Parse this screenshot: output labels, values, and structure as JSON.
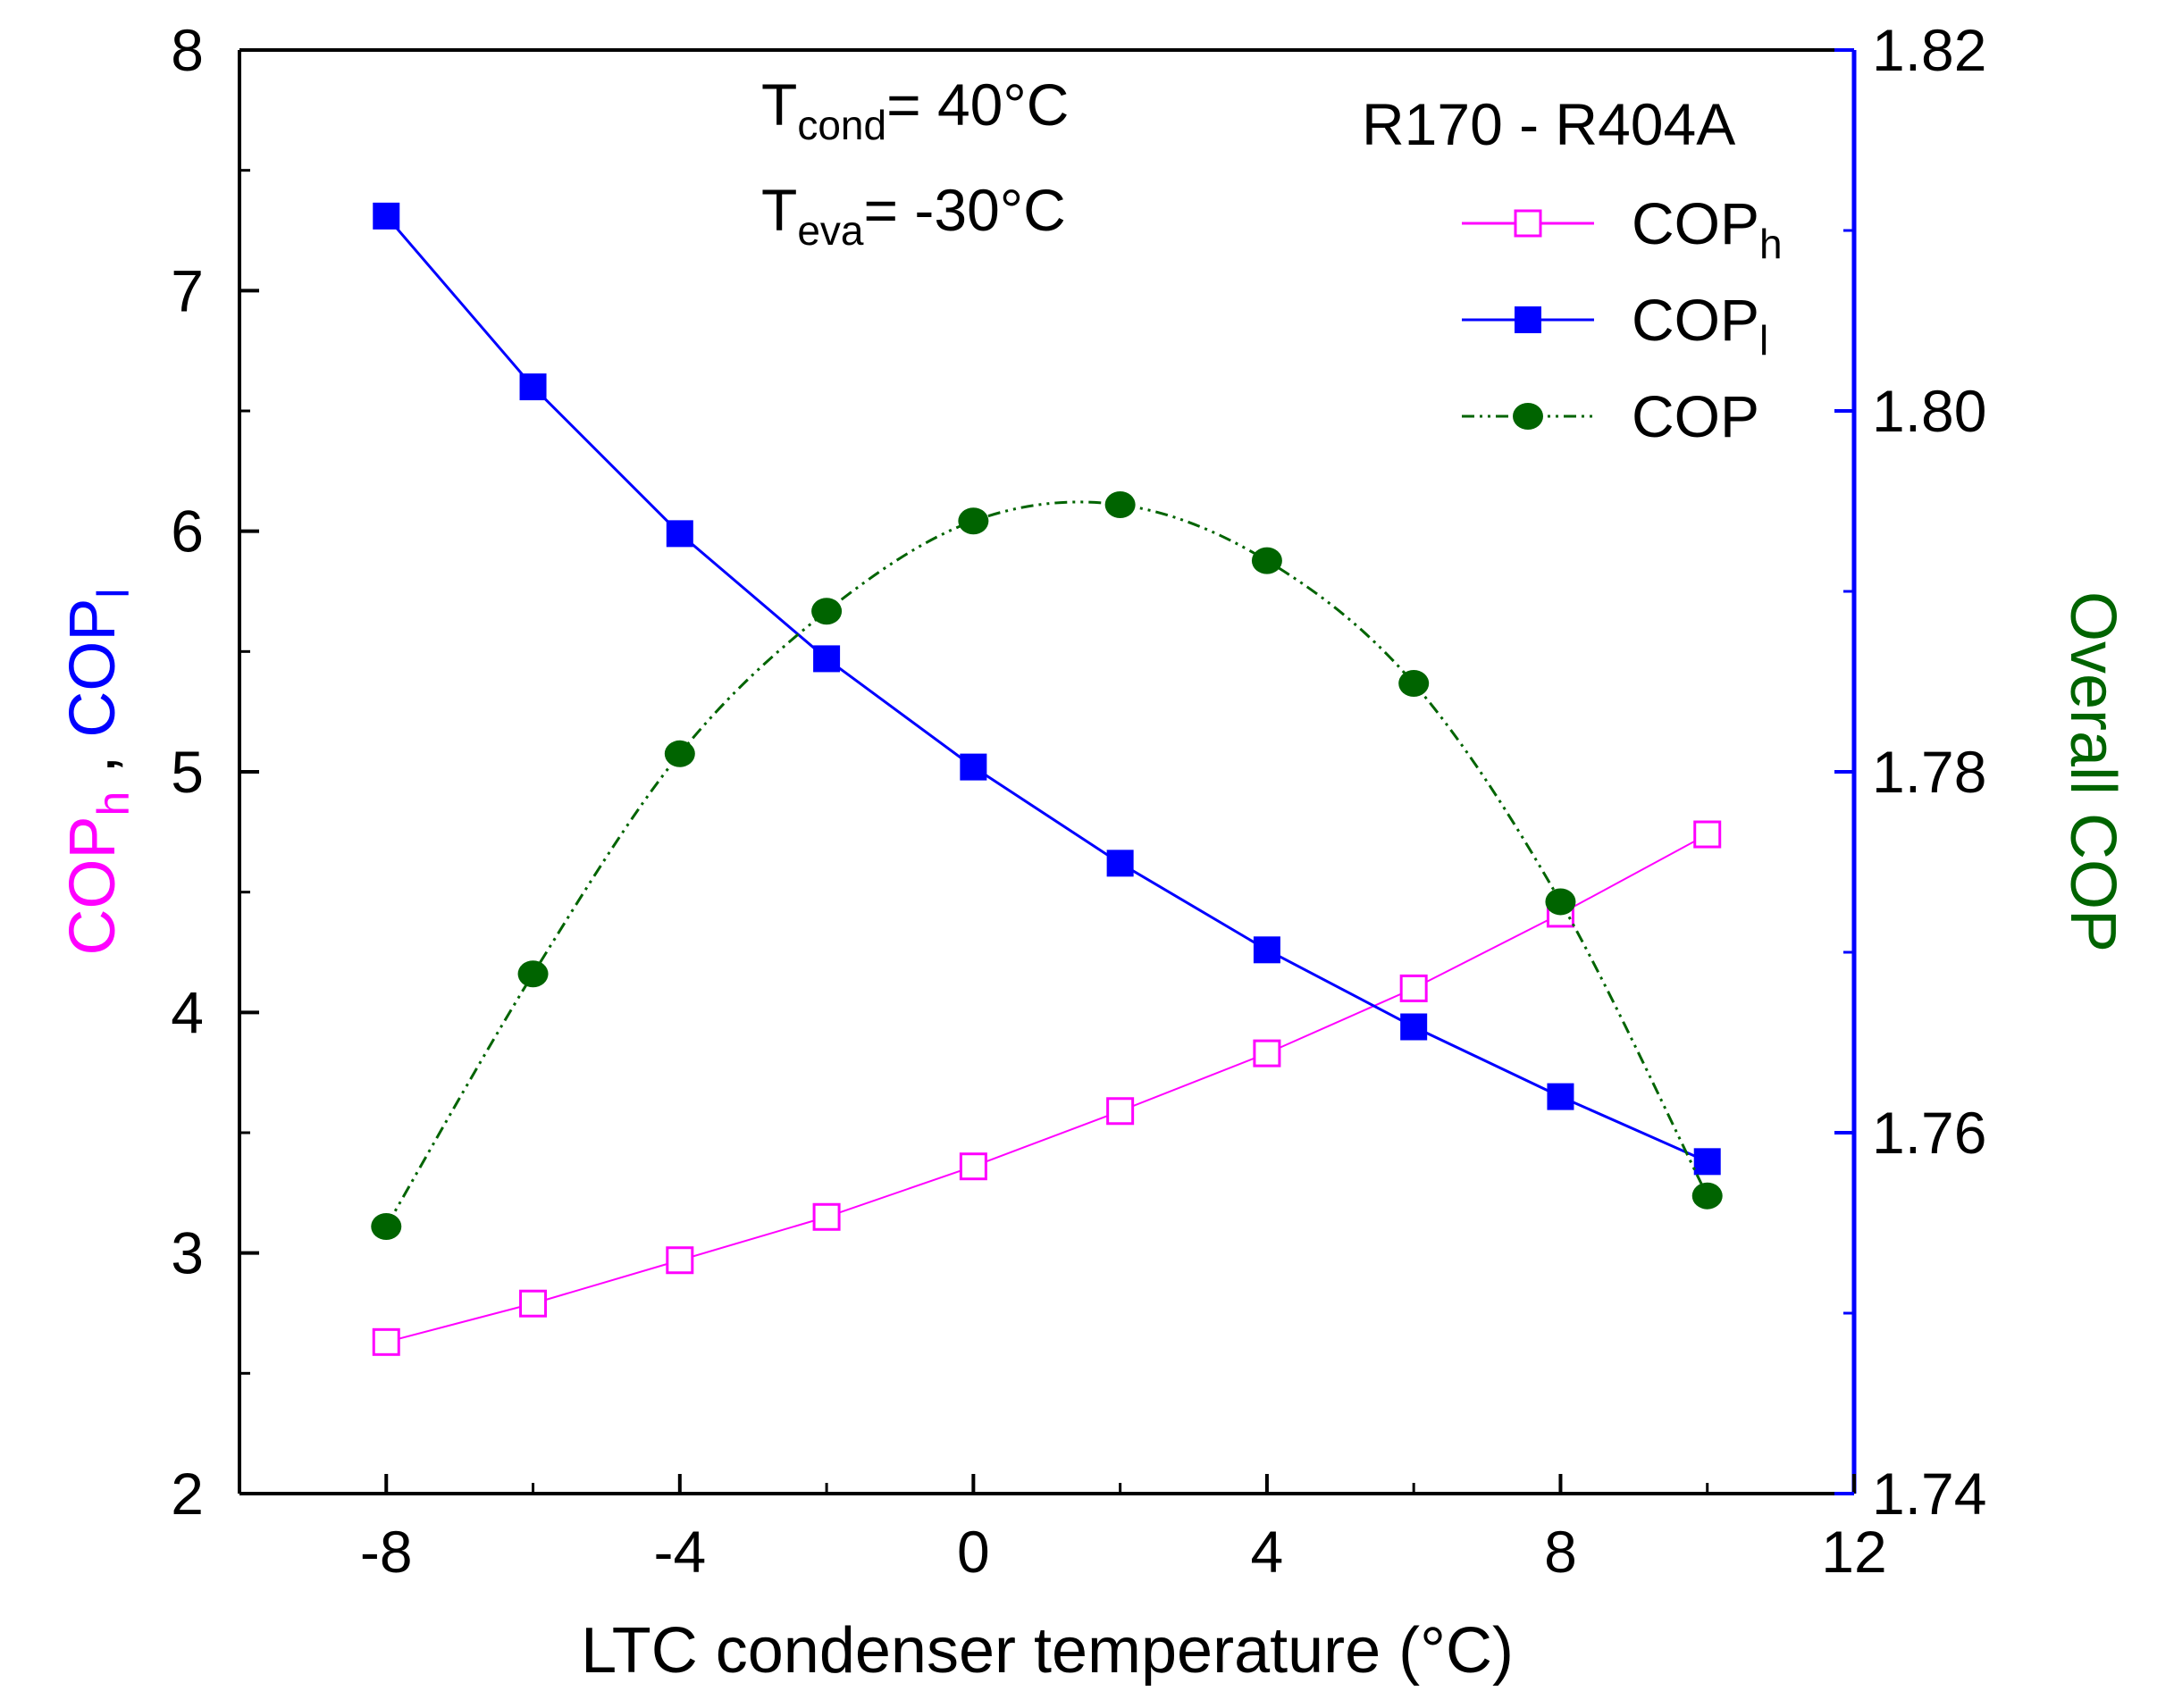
{
  "chart_data": {
    "type": "line",
    "x": [
      -8,
      -6,
      -4,
      -2,
      0,
      2,
      4,
      6,
      8,
      10
    ],
    "xlabel": "LTC condenser temperature (°C)",
    "xlim": [
      -10,
      12
    ],
    "x_ticks": [
      "-8",
      "-4",
      "0",
      "4",
      "8",
      "12"
    ],
    "y_left": {
      "label_main": "COP",
      "label_sub_h": "h",
      "label_sep": " , ",
      "label_sub_l": "l",
      "ylim": [
        2,
        8
      ],
      "ticks": [
        "2",
        "3",
        "4",
        "5",
        "6",
        "7",
        "8"
      ],
      "color_h": "#ff00ff",
      "color_l": "#0000ff"
    },
    "y_right": {
      "label": "Overall COP",
      "ylim": [
        1.74,
        1.82
      ],
      "ticks": [
        "1.74",
        "1.76",
        "1.78",
        "1.80",
        "1.82"
      ],
      "label_color": "#006400",
      "axis_color": "#0000ff"
    },
    "series": [
      {
        "name": "COP",
        "subscript": "h",
        "axis": "left",
        "color": "#ff00ff",
        "marker": "open-square",
        "values": [
          2.63,
          2.79,
          2.97,
          3.15,
          3.36,
          3.59,
          3.83,
          4.1,
          4.41,
          4.74
        ]
      },
      {
        "name": "COP",
        "subscript": "l",
        "axis": "left",
        "color": "#0000ff",
        "marker": "filled-square",
        "values": [
          7.31,
          6.6,
          5.99,
          5.47,
          5.02,
          4.62,
          4.26,
          3.94,
          3.65,
          3.38
        ]
      },
      {
        "name": "COP",
        "subscript": "",
        "axis": "right",
        "color": "#006400",
        "marker": "filled-circle",
        "values": [
          1.7548,
          1.7688,
          1.781,
          1.7889,
          1.7939,
          1.7948,
          1.7917,
          1.7849,
          1.7728,
          1.7565
        ]
      }
    ],
    "annotations": {
      "tcond": {
        "main": "T",
        "sub": "cond",
        "rest": "= 40°C"
      },
      "teva": {
        "main": "T",
        "sub": "eva",
        "rest": "= -30°C"
      },
      "refrigerant": "R170 - R404A"
    },
    "legend_position": "top-right"
  }
}
